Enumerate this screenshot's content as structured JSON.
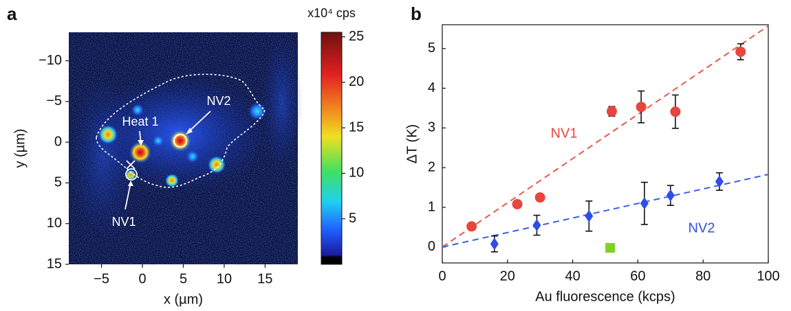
{
  "chart_data": [
    {
      "type": "heatmap",
      "panel_label": "a",
      "xlabel": "x (µm)",
      "ylabel": "y (µm)",
      "xlim": [
        -9,
        19
      ],
      "ylim": [
        -13.5,
        15
      ],
      "y_inverted": true,
      "xticks": [
        {
          "value": -5,
          "label": "−5"
        },
        0,
        5,
        10,
        15
      ],
      "yticks": [
        {
          "value": -10,
          "label": "−10"
        },
        {
          "value": -5,
          "label": "−5"
        },
        0,
        5,
        10,
        15
      ],
      "colorbar": {
        "label": "x10⁴ cps",
        "lim": [
          0,
          25.5
        ],
        "ticks": [
          5,
          10,
          15,
          20,
          25
        ]
      },
      "annotations": [
        "Heat 1",
        "NV2",
        "NV1"
      ]
    },
    {
      "type": "scatter",
      "panel_label": "b",
      "xlabel": "Au fluorescence (kcps)",
      "ylabel": "ΔT (K)",
      "xlim": [
        0,
        100
      ],
      "ylim": [
        -0.4,
        5.6
      ],
      "xticks": [
        0,
        20,
        40,
        60,
        80,
        100
      ],
      "yticks": [
        0,
        1,
        2,
        3,
        4,
        5
      ],
      "series": [
        {
          "name": "NV1",
          "color": "#e8453c",
          "marker": "circle",
          "x": [
            9,
            23,
            30,
            52,
            61,
            71.5,
            91.5
          ],
          "values": [
            0.52,
            1.08,
            1.25,
            3.42,
            3.53,
            3.41,
            4.92
          ],
          "errors": [
            0.05,
            0.05,
            0.07,
            0.12,
            0.4,
            0.42,
            0.2
          ]
        },
        {
          "name": "NV2",
          "color": "#2f4de8",
          "marker": "diamond",
          "x": [
            16,
            29,
            45,
            62,
            70,
            85
          ],
          "values": [
            0.08,
            0.55,
            0.78,
            1.1,
            1.3,
            1.65
          ],
          "errors": [
            0.2,
            0.25,
            0.38,
            0.53,
            0.25,
            0.22
          ]
        },
        {
          "color": "#7ed321",
          "marker": "square",
          "x": [
            51.5
          ],
          "values": [
            -0.02
          ]
        }
      ],
      "fits": [
        {
          "color": "#e8584a",
          "x": [
            0,
            100
          ],
          "values": [
            0,
            5.57
          ]
        },
        {
          "color": "#3a5fe0",
          "x": [
            0,
            100
          ],
          "values": [
            0,
            1.83
          ]
        }
      ]
    }
  ]
}
